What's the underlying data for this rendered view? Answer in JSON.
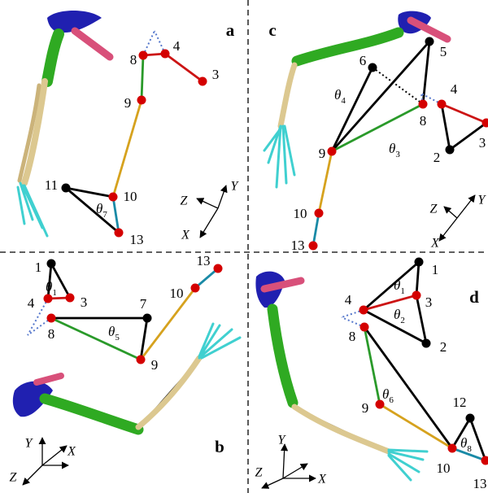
{
  "panels": [
    {
      "label": "a",
      "nodes": [
        "8",
        "4",
        "3",
        "9",
        "10",
        "11",
        "13"
      ],
      "angles": [
        {
          "symbol": "θ",
          "index": "7"
        }
      ],
      "axes": {
        "x": "X",
        "y": "Y",
        "z": "Z"
      }
    },
    {
      "label": "b",
      "nodes": [
        "1",
        "4",
        "3",
        "8",
        "7",
        "9",
        "10",
        "13"
      ],
      "angles": [
        {
          "symbol": "θ",
          "index": "1"
        },
        {
          "symbol": "θ",
          "index": "5"
        }
      ],
      "axes": {
        "x": "X",
        "y": "Y",
        "z": "Z"
      }
    },
    {
      "label": "c",
      "nodes": [
        "6",
        "5",
        "8",
        "4",
        "3",
        "2",
        "9",
        "10",
        "13"
      ],
      "angles": [
        {
          "symbol": "θ",
          "index": "4"
        },
        {
          "symbol": "θ",
          "index": "3"
        }
      ],
      "axes": {
        "x": "X",
        "y": "Y",
        "z": "Z"
      }
    },
    {
      "label": "d",
      "nodes": [
        "1",
        "3",
        "4",
        "8",
        "2",
        "9",
        "12",
        "10",
        "13"
      ],
      "angles": [
        {
          "symbol": "θ",
          "index": "1"
        },
        {
          "symbol": "θ",
          "index": "2"
        },
        {
          "symbol": "θ",
          "index": "6"
        },
        {
          "symbol": "θ",
          "index": "8"
        }
      ],
      "axes": {
        "x": "X",
        "y": "Y",
        "z": "Z"
      }
    }
  ]
}
